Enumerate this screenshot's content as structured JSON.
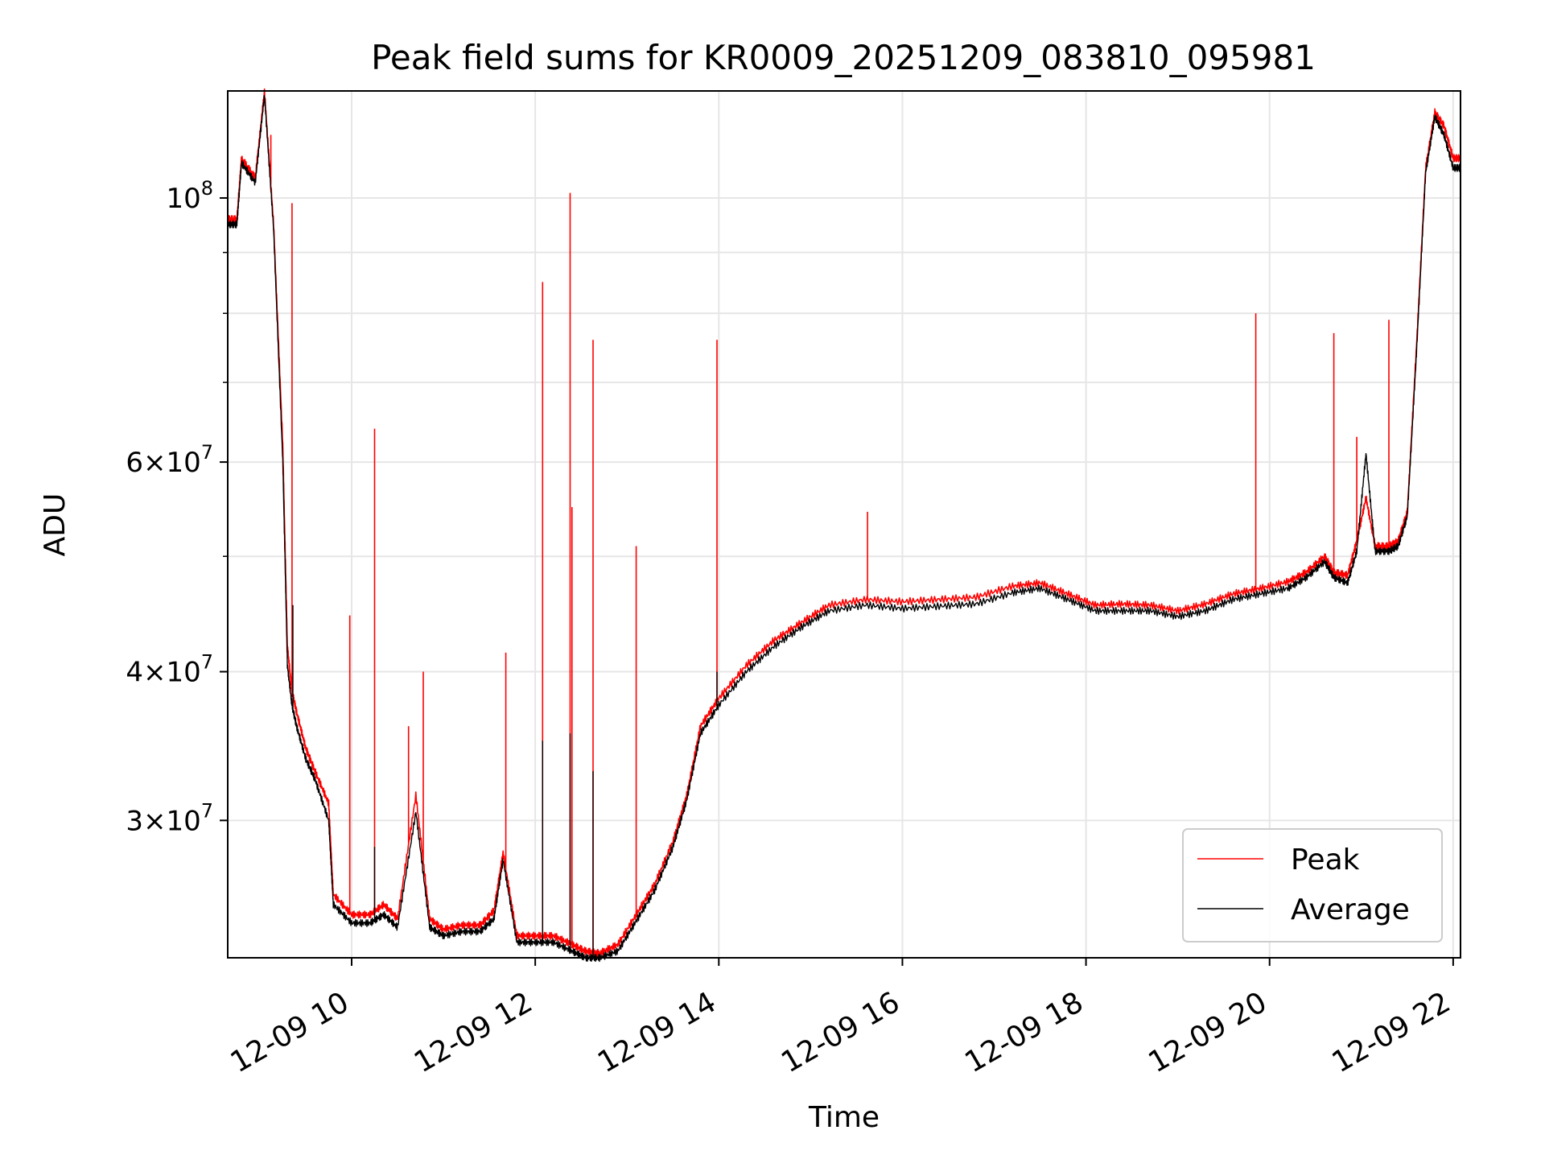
{
  "chart_data": {
    "type": "line",
    "title": "Peak field sums for KR0009_20251209_083810_095981",
    "xlabel": "Time",
    "ylabel": "ADU",
    "yscale": "log",
    "grid": true,
    "legend_position": "lower-right",
    "xlim": [
      8.65,
      22.08
    ],
    "ylim": [
      23000000,
      123000000
    ],
    "x_ticks": [
      {
        "value": 10,
        "label": "12-09 10"
      },
      {
        "value": 12,
        "label": "12-09 12"
      },
      {
        "value": 14,
        "label": "12-09 14"
      },
      {
        "value": 16,
        "label": "12-09 16"
      },
      {
        "value": 18,
        "label": "12-09 18"
      },
      {
        "value": 20,
        "label": "12-09 20"
      },
      {
        "value": 22,
        "label": "12-09 22"
      }
    ],
    "y_ticks": [
      {
        "value": 30000000,
        "mantissa": "3",
        "exponent": "7"
      },
      {
        "value": 40000000,
        "mantissa": "4",
        "exponent": "7"
      },
      {
        "value": 60000000,
        "mantissa": "6",
        "exponent": "7"
      },
      {
        "value": 100000000,
        "mantissa": "",
        "exponent": "8"
      }
    ],
    "y_minor_ticks": [
      50000000,
      70000000,
      80000000,
      90000000
    ],
    "series": [
      {
        "name": "Peak",
        "color": "#ff0000",
        "x": [
          8.65,
          8.75,
          8.8,
          8.95,
          9.05,
          9.15,
          9.25,
          9.3,
          9.35,
          9.4,
          9.5,
          9.6,
          9.75,
          9.8,
          10.0,
          10.2,
          10.35,
          10.5,
          10.7,
          10.85,
          11.0,
          11.2,
          11.4,
          11.55,
          11.65,
          11.8,
          12.0,
          12.2,
          12.4,
          12.55,
          12.7,
          12.9,
          13.1,
          13.3,
          13.5,
          13.65,
          13.8,
          14.0,
          14.3,
          14.6,
          14.9,
          15.2,
          15.6,
          16.0,
          16.4,
          16.8,
          17.2,
          17.5,
          17.8,
          18.1,
          18.4,
          18.7,
          19.0,
          19.3,
          19.6,
          19.9,
          20.2,
          20.4,
          20.6,
          20.7,
          20.85,
          20.95,
          21.05,
          21.15,
          21.3,
          21.4,
          21.5,
          21.6,
          21.7,
          21.8,
          21.9,
          22.0,
          22.08
        ],
        "y": [
          96000000,
          96000000,
          108000000,
          104000000,
          123000000,
          95000000,
          62000000,
          42000000,
          38500000,
          37000000,
          34500000,
          33000000,
          31000000,
          26000000,
          25000000,
          25000000,
          25500000,
          24800000,
          31500000,
          24800000,
          24300000,
          24500000,
          24500000,
          25200000,
          28200000,
          24000000,
          24000000,
          24000000,
          23600000,
          23300000,
          23200000,
          23600000,
          25000000,
          26500000,
          28800000,
          31500000,
          36000000,
          38000000,
          40500000,
          42500000,
          44000000,
          45500000,
          46000000,
          45800000,
          46000000,
          46200000,
          47200000,
          47500000,
          46500000,
          45500000,
          45600000,
          45500000,
          45000000,
          45600000,
          46500000,
          47000000,
          47600000,
          48500000,
          50000000,
          48500000,
          48200000,
          51500000,
          56000000,
          51000000,
          51000000,
          51500000,
          54500000,
          75000000,
          106000000,
          118000000,
          115000000,
          108000000,
          108000000
        ],
        "spikes": [
          {
            "x": 9.12,
            "y": 113000000
          },
          {
            "x": 9.35,
            "y": 99000000
          },
          {
            "x": 9.98,
            "y": 44600000
          },
          {
            "x": 10.25,
            "y": 64000000
          },
          {
            "x": 10.62,
            "y": 36000000
          },
          {
            "x": 10.78,
            "y": 40000000
          },
          {
            "x": 11.68,
            "y": 41500000
          },
          {
            "x": 12.08,
            "y": 85000000
          },
          {
            "x": 12.38,
            "y": 101000000
          },
          {
            "x": 12.4,
            "y": 55000000
          },
          {
            "x": 12.63,
            "y": 76000000
          },
          {
            "x": 13.1,
            "y": 51000000
          },
          {
            "x": 13.98,
            "y": 76000000
          },
          {
            "x": 15.62,
            "y": 54500000
          },
          {
            "x": 19.85,
            "y": 80000000
          },
          {
            "x": 20.7,
            "y": 77000000
          },
          {
            "x": 20.95,
            "y": 63000000
          },
          {
            "x": 21.3,
            "y": 79000000
          }
        ]
      },
      {
        "name": "Average",
        "color": "#000000",
        "x": [
          8.65,
          8.75,
          8.8,
          8.95,
          9.05,
          9.15,
          9.25,
          9.3,
          9.35,
          9.4,
          9.5,
          9.6,
          9.75,
          9.8,
          10.0,
          10.2,
          10.35,
          10.5,
          10.7,
          10.85,
          11.0,
          11.2,
          11.4,
          11.55,
          11.65,
          11.8,
          12.0,
          12.2,
          12.4,
          12.55,
          12.7,
          12.9,
          13.1,
          13.3,
          13.5,
          13.65,
          13.8,
          14.0,
          14.3,
          14.6,
          14.9,
          15.2,
          15.6,
          16.0,
          16.4,
          16.8,
          17.2,
          17.5,
          17.8,
          18.1,
          18.4,
          18.7,
          19.0,
          19.3,
          19.6,
          19.9,
          20.2,
          20.4,
          20.6,
          20.7,
          20.85,
          20.95,
          21.05,
          21.15,
          21.3,
          21.4,
          21.5,
          21.6,
          21.7,
          21.8,
          21.9,
          22.0,
          22.08
        ],
        "y": [
          95000000,
          95000000,
          107000000,
          103000000,
          122000000,
          94000000,
          60000000,
          40500000,
          37500000,
          36000000,
          33800000,
          32500000,
          30000000,
          25500000,
          24600000,
          24600000,
          25000000,
          24400000,
          30500000,
          24400000,
          24000000,
          24200000,
          24200000,
          24800000,
          27800000,
          23700000,
          23700000,
          23700000,
          23300000,
          23000000,
          23000000,
          23300000,
          24700000,
          26200000,
          28500000,
          31200000,
          35500000,
          37500000,
          40000000,
          42000000,
          43600000,
          45000000,
          45500000,
          45200000,
          45400000,
          45600000,
          46600000,
          47000000,
          46000000,
          45000000,
          45000000,
          45000000,
          44500000,
          45000000,
          46000000,
          46500000,
          47000000,
          48000000,
          49500000,
          48000000,
          47500000,
          50500000,
          61000000,
          50500000,
          50500000,
          51000000,
          54000000,
          74000000,
          105000000,
          117000000,
          113000000,
          106000000,
          106000000
        ],
        "spikes": [
          {
            "x": 9.36,
            "y": 45500000
          },
          {
            "x": 10.25,
            "y": 28500000
          },
          {
            "x": 12.08,
            "y": 35000000
          },
          {
            "x": 12.38,
            "y": 35500000
          },
          {
            "x": 12.63,
            "y": 33000000
          },
          {
            "x": 13.98,
            "y": 40000000
          }
        ]
      }
    ]
  }
}
